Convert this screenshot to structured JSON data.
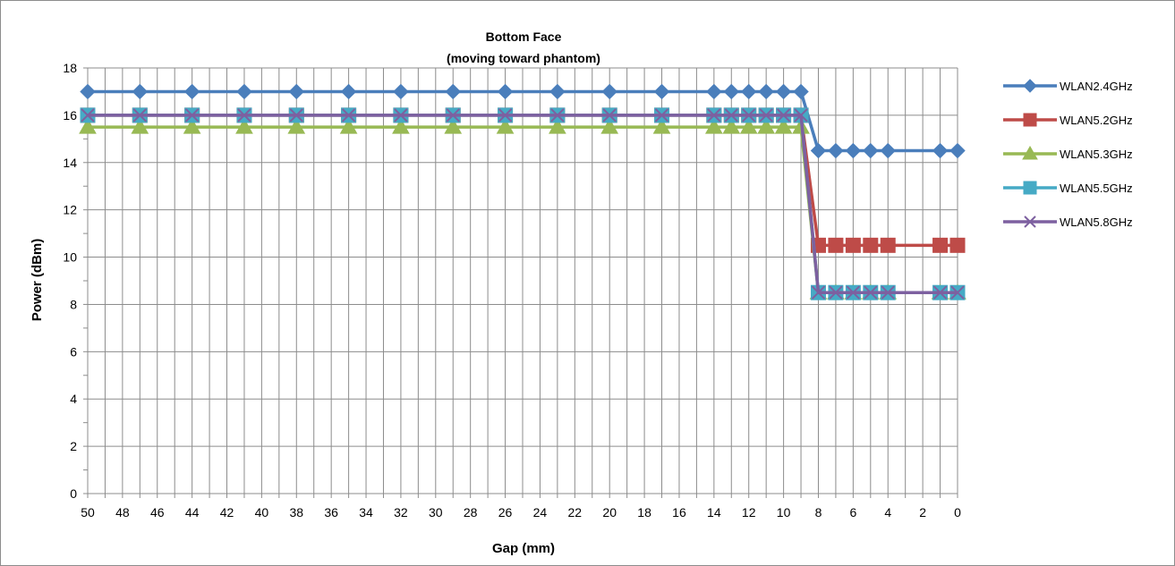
{
  "chart_data": {
    "type": "line",
    "title": "Bottom Face",
    "subtitle": "(moving toward phantom)",
    "xlabel": "Gap (mm)",
    "ylabel": "Power (dBm)",
    "xlim": [
      50,
      0
    ],
    "ylim": [
      0,
      18
    ],
    "x_ticks": [
      50,
      48,
      46,
      44,
      42,
      40,
      38,
      36,
      34,
      32,
      30,
      28,
      26,
      24,
      22,
      20,
      18,
      16,
      14,
      12,
      10,
      8,
      6,
      4,
      2,
      0
    ],
    "y_ticks": [
      0,
      2,
      4,
      6,
      8,
      10,
      12,
      14,
      16,
      18
    ],
    "grid": true,
    "legend_position": "right",
    "x": [
      50,
      47,
      44,
      41,
      38,
      35,
      32,
      29,
      26,
      23,
      20,
      17,
      14,
      13,
      12,
      11,
      10,
      9,
      8,
      7,
      6,
      5,
      4,
      1,
      0
    ],
    "series": [
      {
        "name": "WLAN2.4GHz",
        "color": "#4a7ebb",
        "marker": "diamond",
        "values": [
          17,
          17,
          17,
          17,
          17,
          17,
          17,
          17,
          17,
          17,
          17,
          17,
          17,
          17,
          17,
          17,
          17,
          17,
          14.5,
          14.5,
          14.5,
          14.5,
          14.5,
          14.5,
          14.5
        ]
      },
      {
        "name": "WLAN5.2GHz",
        "color": "#be4b48",
        "marker": "square",
        "values": [
          16,
          16,
          16,
          16,
          16,
          16,
          16,
          16,
          16,
          16,
          16,
          16,
          16,
          16,
          16,
          16,
          16,
          16,
          10.5,
          10.5,
          10.5,
          10.5,
          10.5,
          10.5,
          10.5
        ]
      },
      {
        "name": "WLAN5.3GHz",
        "color": "#98b954",
        "marker": "triangle",
        "values": [
          15.5,
          15.5,
          15.5,
          15.5,
          15.5,
          15.5,
          15.5,
          15.5,
          15.5,
          15.5,
          15.5,
          15.5,
          15.5,
          15.5,
          15.5,
          15.5,
          15.5,
          15.5,
          8.5,
          8.5,
          8.5,
          8.5,
          8.5,
          8.5,
          8.5
        ]
      },
      {
        "name": "WLAN5.5GHz",
        "color": "#46aac5",
        "marker": "square",
        "values": [
          16,
          16,
          16,
          16,
          16,
          16,
          16,
          16,
          16,
          16,
          16,
          16,
          16,
          16,
          16,
          16,
          16,
          16,
          8.5,
          8.5,
          8.5,
          8.5,
          8.5,
          8.5,
          8.5
        ]
      },
      {
        "name": "WLAN5.8GHz",
        "color": "#7d60a0",
        "marker": "x",
        "values": [
          16,
          16,
          16,
          16,
          16,
          16,
          16,
          16,
          16,
          16,
          16,
          16,
          16,
          16,
          16,
          16,
          16,
          16,
          8.5,
          8.5,
          8.5,
          8.5,
          8.5,
          8.5,
          8.5
        ]
      }
    ]
  }
}
